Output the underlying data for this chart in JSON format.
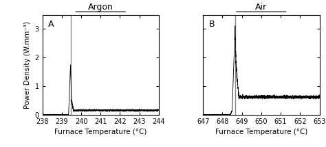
{
  "panel_A": {
    "label": "A",
    "title": "Argon",
    "xlabel": "Furnace Temperature (°C)",
    "ylabel": "Power Density (W.mm⁻³)",
    "xlim": [
      238,
      244
    ],
    "xticks": [
      238,
      239,
      240,
      241,
      242,
      243,
      244
    ],
    "ylim": [
      0,
      3.5
    ],
    "yticks": [
      0,
      1.0,
      2.0,
      3.0
    ],
    "flash_start": 239.35,
    "flash_peak": 239.45,
    "peak_value": 1.75,
    "steady_value": 0.15,
    "noise_amp": 0.03
  },
  "panel_B": {
    "label": "B",
    "title": "Air",
    "xlabel": "Furnace Temperature (°C)",
    "xlim": [
      647,
      653
    ],
    "xticks": [
      647,
      648,
      649,
      650,
      651,
      652,
      653
    ],
    "ylim": [
      0,
      3.5
    ],
    "yticks": [
      0,
      1.0,
      2.0,
      3.0
    ],
    "flash_start": 648.5,
    "flash_peak": 648.65,
    "peak_value": 3.1,
    "steady_value": 0.62,
    "noise_amp": 0.03
  },
  "line_color": "#000000",
  "gray_color": "#888888",
  "bg_color": "#ffffff",
  "title_fontsize": 9,
  "label_fontsize": 7.5,
  "tick_fontsize": 7.0
}
